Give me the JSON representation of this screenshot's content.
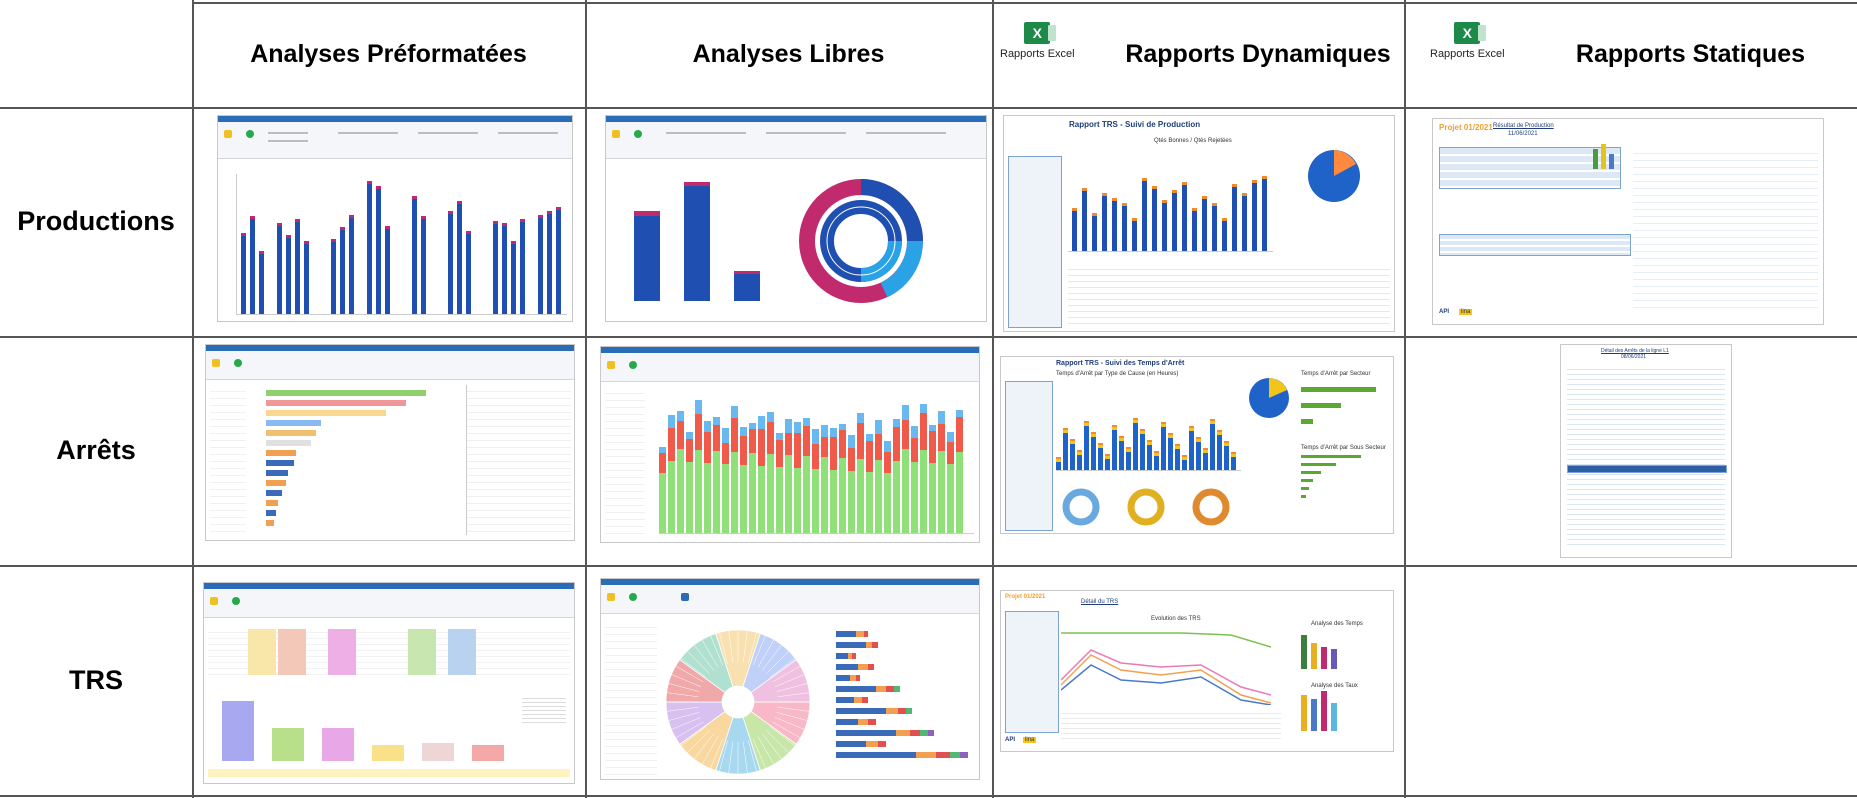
{
  "columns": [
    {
      "label": "Analyses Préformatées",
      "badge": ""
    },
    {
      "label": "Analyses Libres",
      "badge": ""
    },
    {
      "label": "Rapports Dynamiques",
      "badge": "Rapports Excel"
    },
    {
      "label": "Rapports Statiques",
      "badge": "Rapports Excel"
    }
  ],
  "rows": [
    {
      "label": "Productions"
    },
    {
      "label": "Arrêts"
    },
    {
      "label": "TRS"
    }
  ],
  "excel_icon_letter": "X",
  "thumbnails": {
    "prod_dyn_title": "Rapport TRS - Suivi de Production",
    "prod_dyn_subtitle": "Qtés Bonnes / Qtés Rejetées",
    "prod_stat_project": "Projet 01/2021",
    "prod_stat_title": "Résultat de Production",
    "prod_stat_date": "11/06/2021",
    "arret_dyn_title": "Rapport TRS - Suivi des Temps d'Arrêt",
    "arret_dyn_sub1": "Temps d'Arrêt par Type de Cause (en Heures)",
    "arret_dyn_sub2": "Temps d'Arrêt par Secteur",
    "arret_dyn_sub3": "Temps d'Arrêt par Sous Secteur",
    "arret_stat_title": "Détail des Arrêts de la ligne L1",
    "arret_stat_date": "08/06/2021",
    "trs_dyn_title": "Détail du TRS",
    "trs_dyn_sub1": "Evolution des TRS",
    "trs_dyn_sub2": "Analyse des Temps",
    "trs_dyn_sub3": "Analyse des Taux",
    "api_logo": "API",
    "lina_logo": "lina"
  },
  "colors": {
    "grid_line": "#555555",
    "bar_blue": "#1f4fb0",
    "bar_magenta": "#c22a6e",
    "ribbon_blue": "#2b6cb8",
    "excel_green": "#1d8a4a"
  }
}
